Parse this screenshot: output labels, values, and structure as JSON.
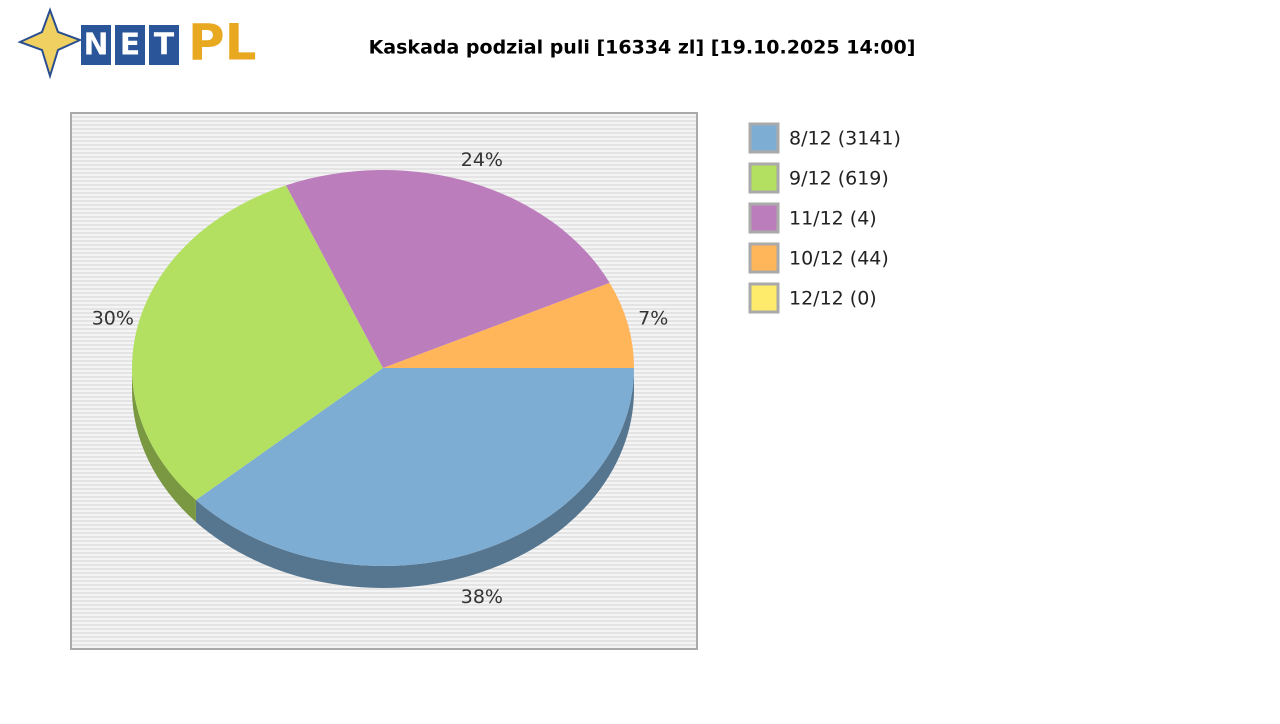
{
  "logo": {
    "letters": [
      "N",
      "E",
      "T"
    ],
    "suffix": "PL"
  },
  "chart_data": {
    "type": "pie",
    "title": "Kaskada podzial puli [16334 zl] [19.10.2025 14:00]",
    "categories": [
      "8/12 (3141)",
      "9/12 (619)",
      "11/12 (4)",
      "10/12 (44)",
      "12/12 (0)"
    ],
    "values": [
      38,
      30,
      24,
      7,
      0
    ],
    "value_labels": [
      "38%",
      "30%",
      "24%",
      "7%",
      null
    ],
    "colors": [
      "#7eadd4",
      "#b4e061",
      "#bc7dbc",
      "#ffb55a",
      "#ffeb6b"
    ],
    "legend": "right"
  }
}
